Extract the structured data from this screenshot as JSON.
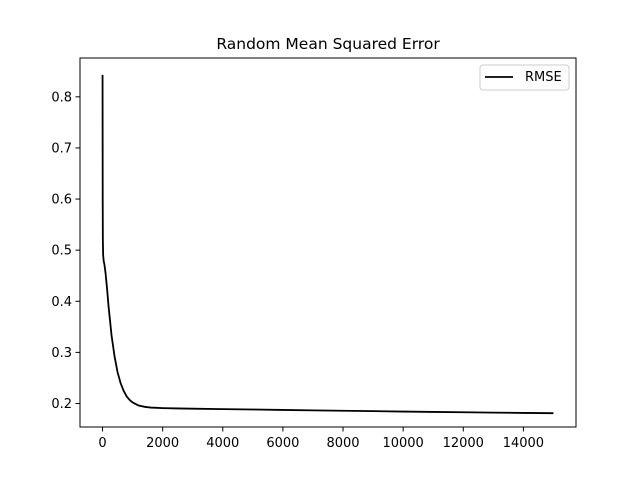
{
  "chart_data": {
    "type": "line",
    "title": "Random Mean Squared Error",
    "xlabel": "",
    "ylabel": "",
    "xlim": [
      -750,
      15750
    ],
    "ylim": [
      0.154,
      0.876
    ],
    "x_ticks": [
      0,
      2000,
      4000,
      6000,
      8000,
      10000,
      12000,
      14000
    ],
    "x_tick_labels": [
      "0",
      "2000",
      "4000",
      "6000",
      "8000",
      "10000",
      "12000",
      "14000"
    ],
    "y_ticks": [
      0.2,
      0.3,
      0.4,
      0.5,
      0.6,
      0.7,
      0.8
    ],
    "y_tick_labels": [
      "0.2",
      "0.3",
      "0.4",
      "0.5",
      "0.6",
      "0.7",
      "0.8"
    ],
    "grid": false,
    "legend": {
      "position": "upper right",
      "entries": [
        "RMSE"
      ]
    },
    "series": [
      {
        "name": "RMSE",
        "color": "#000000",
        "x": [
          0,
          5,
          10,
          20,
          40,
          60,
          100,
          150,
          200,
          300,
          400,
          500,
          600,
          700,
          800,
          900,
          1000,
          1200,
          1400,
          1600,
          1800,
          2000,
          2500,
          3000,
          4000,
          5000,
          6000,
          7000,
          8000,
          9000,
          10000,
          11000,
          12000,
          13000,
          14000,
          15000
        ],
        "y": [
          0.843,
          0.6,
          0.52,
          0.49,
          0.478,
          0.473,
          0.455,
          0.425,
          0.39,
          0.333,
          0.292,
          0.261,
          0.24,
          0.225,
          0.214,
          0.207,
          0.202,
          0.196,
          0.1935,
          0.192,
          0.1915,
          0.191,
          0.1903,
          0.1898,
          0.189,
          0.1882,
          0.1874,
          0.1866,
          0.1858,
          0.185,
          0.1842,
          0.1835,
          0.1828,
          0.1822,
          0.1815,
          0.181
        ]
      }
    ]
  }
}
